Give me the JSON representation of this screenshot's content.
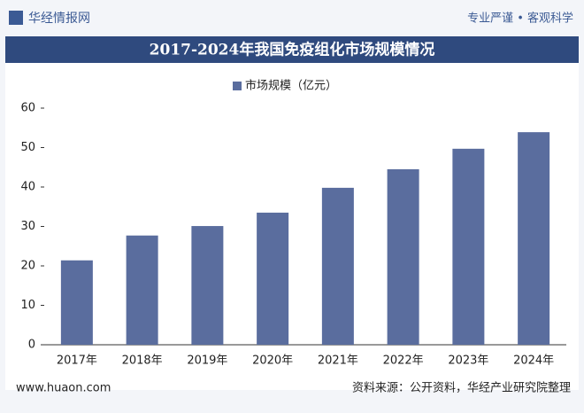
{
  "header": {
    "logo": "华经情报网",
    "slogan": "专业严谨 • 客观科学"
  },
  "chart_data": {
    "type": "bar",
    "title": "2017-2024年我国免疫组化市场规模情况",
    "categories": [
      "2017年",
      "2018年",
      "2019年",
      "2020年",
      "2021年",
      "2022年",
      "2023年",
      "2024年"
    ],
    "series": [
      {
        "name": "市场规模（亿元）",
        "color": "#5a6d9e",
        "values": [
          21.4,
          27.7,
          30.1,
          33.5,
          39.8,
          44.5,
          49.7,
          53.9
        ]
      }
    ],
    "ylim": [
      0,
      60
    ],
    "yticks": [
      0,
      10,
      20,
      30,
      40,
      50,
      60
    ],
    "grid": false
  },
  "footer": {
    "website": "www.huaon.com",
    "source": "资料来源：公开资料，华经产业研究院整理"
  }
}
